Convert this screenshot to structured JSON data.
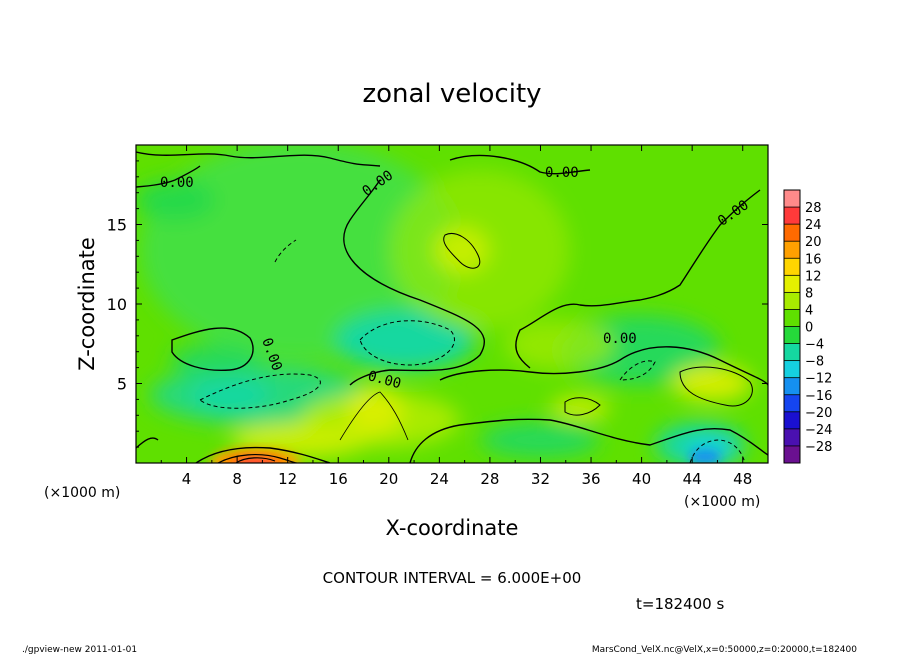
{
  "chart_data": {
    "type": "heatmap",
    "title": "zonal velocity",
    "xlabel": "X-coordinate",
    "ylabel": "Z-coordinate",
    "x_unit": "(×1000 m)",
    "y_unit": "(×1000 m)",
    "xlim": [
      0,
      50
    ],
    "ylim": [
      0,
      20
    ],
    "x_ticks": [
      "4",
      "8",
      "12",
      "16",
      "20",
      "24",
      "28",
      "32",
      "36",
      "40",
      "44",
      "48"
    ],
    "y_ticks": [
      "5",
      "10",
      "15"
    ],
    "contour_interval_text": "CONTOUR INTERVAL = 6.000E+00",
    "contour_labels": [
      "0.00",
      "0.00",
      "0.00",
      "0.00",
      "0.00",
      "0.00",
      "0.00"
    ],
    "time_text": "t=182400 s",
    "colorbar": {
      "ticks": [
        "28",
        "24",
        "20",
        "16",
        "12",
        "8",
        "4",
        "0",
        "−4",
        "−8",
        "−12",
        "−16",
        "−20",
        "−24",
        "−28"
      ],
      "colors": [
        "#ff8a8a",
        "#ff3a3a",
        "#ff6a00",
        "#ffa000",
        "#ffd500",
        "#e4f000",
        "#a8eb00",
        "#5fe000",
        "#25d93a",
        "#15d8a0",
        "#15d0e0",
        "#1590f0",
        "#1545f0",
        "#1a10d0",
        "#4a10b0",
        "#6a1090"
      ]
    },
    "features": [
      {
        "x": 10,
        "z": 0.3,
        "value": 26
      },
      {
        "x": 19,
        "z": 2.5,
        "value": 7
      },
      {
        "x": 27,
        "z": 13,
        "value": 6
      },
      {
        "x": 20,
        "z": 8,
        "value": -8
      },
      {
        "x": 9,
        "z": 4,
        "value": -5
      },
      {
        "x": 44,
        "z": 0.5,
        "value": -12
      },
      {
        "x": 45,
        "z": 5,
        "value": 7
      },
      {
        "x": 35,
        "z": 1,
        "value": -4
      }
    ]
  },
  "footer": {
    "left": "./gpview-new   2011-01-01",
    "right": "MarsCond_VelX.nc@VelX,x=0:50000,z=0:20000,t=182400"
  }
}
